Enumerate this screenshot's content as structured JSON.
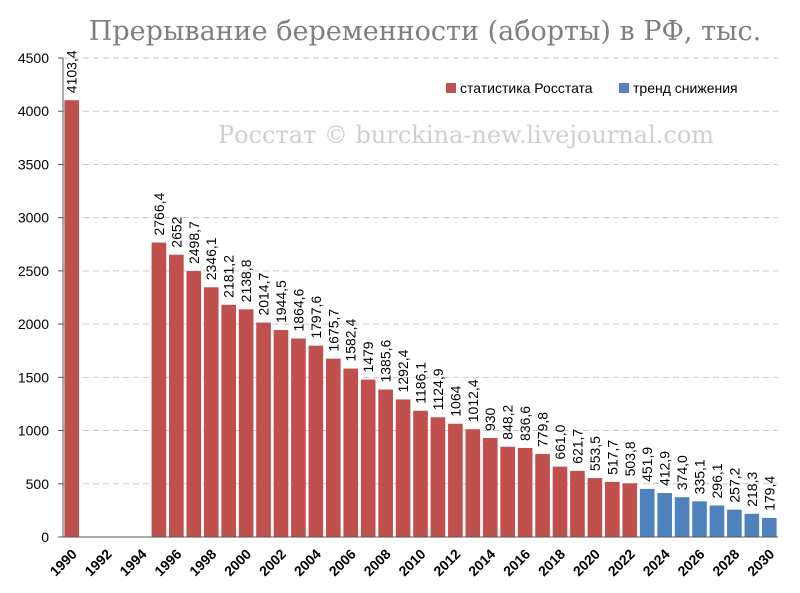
{
  "chart_data": {
    "type": "bar",
    "title": "Прерывание беременности (аборты) в РФ, тыс.",
    "watermark": "Росстат © burckina-new.livejournal.com",
    "xlabel": "",
    "ylabel": "",
    "ylim": [
      0,
      4500
    ],
    "yticks": [
      0,
      500,
      1000,
      1500,
      2000,
      2500,
      3000,
      3500,
      4000,
      4500
    ],
    "xtick_labels": [
      "1990",
      "1992",
      "1994",
      "1996",
      "1998",
      "2000",
      "2002",
      "2004",
      "2006",
      "2008",
      "2010",
      "2012",
      "2014",
      "2016",
      "2018",
      "2020",
      "2022",
      "2024",
      "2026",
      "2028",
      "2030"
    ],
    "grid": true,
    "legend_position": "top-right",
    "series": [
      {
        "name": "статистика Росстата",
        "color": "#c0504d",
        "points": [
          {
            "year": 1990,
            "value": 4103.4,
            "label": "4103,4"
          },
          {
            "year": 1995,
            "value": 2766.4,
            "label": "2766,4"
          },
          {
            "year": 1996,
            "value": 2652,
            "label": "2652"
          },
          {
            "year": 1997,
            "value": 2498.7,
            "label": "2498,7"
          },
          {
            "year": 1998,
            "value": 2346.1,
            "label": "2346,1"
          },
          {
            "year": 1999,
            "value": 2181.2,
            "label": "2181,2"
          },
          {
            "year": 2000,
            "value": 2138.8,
            "label": "2138,8"
          },
          {
            "year": 2001,
            "value": 2014.7,
            "label": "2014,7"
          },
          {
            "year": 2002,
            "value": 1944.5,
            "label": "1944,5"
          },
          {
            "year": 2003,
            "value": 1864.6,
            "label": "1864,6"
          },
          {
            "year": 2004,
            "value": 1797.6,
            "label": "1797,6"
          },
          {
            "year": 2005,
            "value": 1675.7,
            "label": "1675,7"
          },
          {
            "year": 2006,
            "value": 1582.4,
            "label": "1582,4"
          },
          {
            "year": 2007,
            "value": 1479,
            "label": "1479"
          },
          {
            "year": 2008,
            "value": 1385.6,
            "label": "1385,6"
          },
          {
            "year": 2009,
            "value": 1292.4,
            "label": "1292,4"
          },
          {
            "year": 2010,
            "value": 1186.1,
            "label": "1186,1"
          },
          {
            "year": 2011,
            "value": 1124.9,
            "label": "1124,9"
          },
          {
            "year": 2012,
            "value": 1064,
            "label": "1064"
          },
          {
            "year": 2013,
            "value": 1012.4,
            "label": "1012,4"
          },
          {
            "year": 2014,
            "value": 930,
            "label": "930"
          },
          {
            "year": 2015,
            "value": 848.2,
            "label": "848,2"
          },
          {
            "year": 2016,
            "value": 836.6,
            "label": "836,6"
          },
          {
            "year": 2017,
            "value": 779.8,
            "label": "779,8"
          },
          {
            "year": 2018,
            "value": 661.0,
            "label": "661,0"
          },
          {
            "year": 2019,
            "value": 621.7,
            "label": "621,7"
          },
          {
            "year": 2020,
            "value": 553.5,
            "label": "553,5"
          },
          {
            "year": 2021,
            "value": 517.7,
            "label": "517,7"
          },
          {
            "year": 2022,
            "value": 503.8,
            "label": "503,8"
          }
        ]
      },
      {
        "name": "тренд снижения",
        "color": "#4f81bd",
        "points": [
          {
            "year": 2023,
            "value": 451.9,
            "label": "451,9"
          },
          {
            "year": 2024,
            "value": 412.9,
            "label": "412,9"
          },
          {
            "year": 2025,
            "value": 374.0,
            "label": "374,0"
          },
          {
            "year": 2026,
            "value": 335.1,
            "label": "335,1"
          },
          {
            "year": 2027,
            "value": 296.1,
            "label": "296,1"
          },
          {
            "year": 2028,
            "value": 257.2,
            "label": "257,2"
          },
          {
            "year": 2029,
            "value": 218.3,
            "label": "218,3"
          },
          {
            "year": 2030,
            "value": 179.4,
            "label": "179,4"
          }
        ]
      }
    ],
    "year_range": [
      1990,
      2030
    ]
  }
}
